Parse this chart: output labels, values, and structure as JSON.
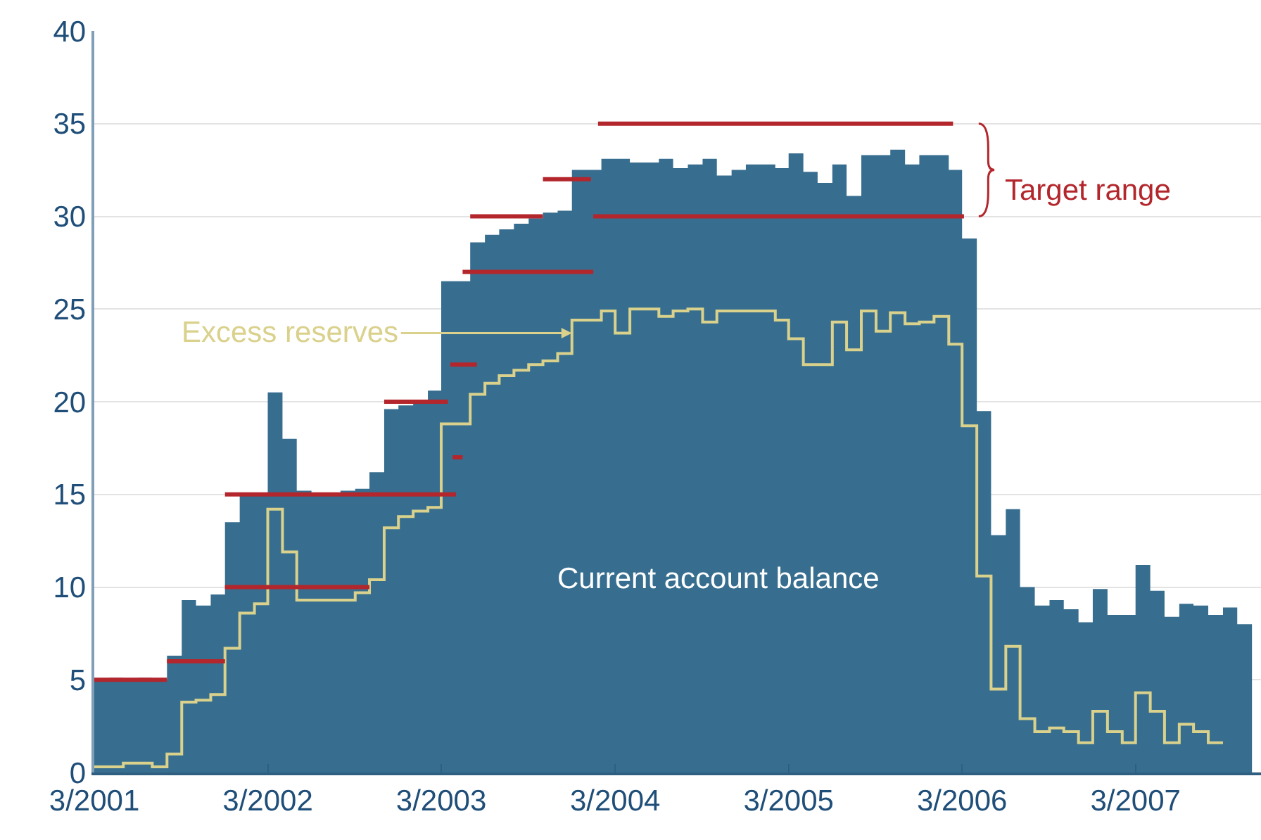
{
  "chart_data": {
    "type": "area",
    "x": [
      "2001-03",
      "2001-04",
      "2001-05",
      "2001-06",
      "2001-07",
      "2001-08",
      "2001-09",
      "2001-10",
      "2001-11",
      "2001-12",
      "2002-01",
      "2002-02",
      "2002-03",
      "2002-04",
      "2002-05",
      "2002-06",
      "2002-07",
      "2002-08",
      "2002-09",
      "2002-10",
      "2002-11",
      "2002-12",
      "2003-01",
      "2003-02",
      "2003-03",
      "2003-04",
      "2003-05",
      "2003-06",
      "2003-07",
      "2003-08",
      "2003-09",
      "2003-10",
      "2003-11",
      "2003-12",
      "2004-01",
      "2004-02",
      "2004-03",
      "2004-04",
      "2004-05",
      "2004-06",
      "2004-07",
      "2004-08",
      "2004-09",
      "2004-10",
      "2004-11",
      "2004-12",
      "2005-01",
      "2005-02",
      "2005-03",
      "2005-04",
      "2005-05",
      "2005-06",
      "2005-07",
      "2005-08",
      "2005-09",
      "2005-10",
      "2005-11",
      "2005-12",
      "2006-01",
      "2006-02",
      "2006-03",
      "2006-04",
      "2006-05",
      "2006-06",
      "2006-07",
      "2006-08",
      "2006-09",
      "2006-10",
      "2006-11",
      "2006-12",
      "2007-01",
      "2007-02",
      "2007-03",
      "2007-04",
      "2007-05",
      "2007-06",
      "2007-07",
      "2007-08",
      "2007-09",
      "2007-10",
      "2007-11"
    ],
    "series": [
      {
        "color": "#376e8f",
        "values": [
          5.0,
          5.1,
          5.0,
          5.1,
          5.0,
          6.3,
          9.3,
          9.0,
          9.6,
          13.5,
          15.0,
          15.0,
          20.5,
          18.0,
          15.2,
          15.1,
          15.0,
          15.2,
          15.3,
          16.2,
          19.6,
          19.8,
          20.1,
          20.6,
          26.5,
          26.5,
          28.6,
          29.0,
          29.3,
          29.6,
          29.9,
          30.2,
          30.3,
          32.5,
          32.5,
          33.1,
          33.1,
          32.9,
          32.9,
          33.1,
          32.6,
          32.8,
          33.1,
          32.2,
          32.5,
          32.8,
          32.8,
          32.6,
          33.4,
          32.4,
          31.8,
          32.8,
          31.1,
          33.3,
          33.3,
          33.6,
          32.8,
          33.3,
          33.3,
          32.5,
          28.8,
          19.5,
          12.8,
          14.2,
          10.0,
          9.0,
          9.3,
          8.8,
          8.1,
          9.9,
          8.5,
          8.5,
          11.2,
          9.8,
          8.4,
          9.1,
          9.0,
          8.5,
          8.9,
          8.0,
          8.0
        ]
      },
      {
        "type": "step",
        "color": "#d9d18c",
        "values": [
          0.3,
          0.3,
          0.5,
          0.5,
          0.3,
          1.0,
          3.8,
          3.9,
          4.2,
          6.7,
          8.6,
          9.1,
          14.2,
          11.9,
          9.3,
          9.3,
          9.3,
          9.3,
          9.7,
          10.4,
          13.2,
          13.8,
          14.1,
          14.3,
          18.8,
          18.8,
          20.4,
          21.0,
          21.4,
          21.7,
          22.0,
          22.2,
          22.6,
          24.4,
          24.4,
          24.9,
          23.7,
          25.0,
          25.0,
          24.6,
          24.9,
          25.0,
          24.3,
          24.9,
          24.9,
          24.9,
          24.9,
          24.4,
          23.4,
          22.0,
          22.0,
          24.3,
          22.8,
          24.9,
          23.8,
          24.8,
          24.2,
          24.3,
          24.6,
          23.1,
          18.7,
          10.6,
          4.5,
          6.8,
          2.9,
          2.2,
          2.4,
          2.2,
          1.6,
          3.3,
          2.2,
          1.6,
          4.3,
          3.3,
          1.6,
          2.6,
          2.2,
          1.6,
          1.6,
          null,
          null
        ]
      },
      {
        "type": "line",
        "color": "#b3262c",
        "x": [
          "2001-03-01",
          "2001-08-01",
          null,
          "2001-08-01",
          "2001-12-01",
          null,
          "2001-12-01",
          "2002-10-01",
          null,
          "2001-12-01",
          "2003-04-01",
          null,
          "2002-11-01",
          "2003-03-15",
          null,
          "2003-03-20",
          "2003-05-15",
          null,
          "2003-03-25",
          "2003-04-15",
          null,
          "2003-04-15",
          "2004-01-15",
          null,
          "2003-05-01",
          "2003-10-01",
          null,
          "2003-10-01",
          "2004-01-10",
          null,
          "2004-01-25",
          "2006-02-10",
          null,
          "2004-01-15",
          "2006-03-05"
        ],
        "values": [
          5,
          5,
          null,
          6,
          6,
          null,
          10,
          10,
          null,
          15,
          15,
          null,
          20,
          20,
          null,
          22,
          22,
          null,
          17,
          17,
          null,
          27,
          27,
          null,
          30,
          30,
          null,
          32,
          32,
          null,
          35,
          35,
          null,
          30,
          30
        ]
      }
    ],
    "ylim": [
      0,
      40
    ],
    "yticks": [
      0,
      5,
      10,
      15,
      20,
      25,
      30,
      35,
      40
    ],
    "xlim": [
      "2001-03-01",
      "2007-11-20"
    ],
    "xticks": [
      {
        "value": "2001-03-01",
        "label": "3/2001"
      },
      {
        "value": "2002-03-01",
        "label": "3/2002"
      },
      {
        "value": "2003-03-01",
        "label": "3/2003"
      },
      {
        "value": "2004-03-01",
        "label": "3/2004"
      },
      {
        "value": "2005-03-01",
        "label": "3/2005"
      },
      {
        "value": "2006-03-01",
        "label": "3/2006"
      },
      {
        "value": "2007-03-01",
        "label": "3/2007"
      }
    ],
    "grid": "y",
    "annotations": [
      {
        "text": "Excess reserves",
        "x": "2003-12-01",
        "y": 23.7
      },
      "Target range",
      "Current account balance"
    ]
  }
}
